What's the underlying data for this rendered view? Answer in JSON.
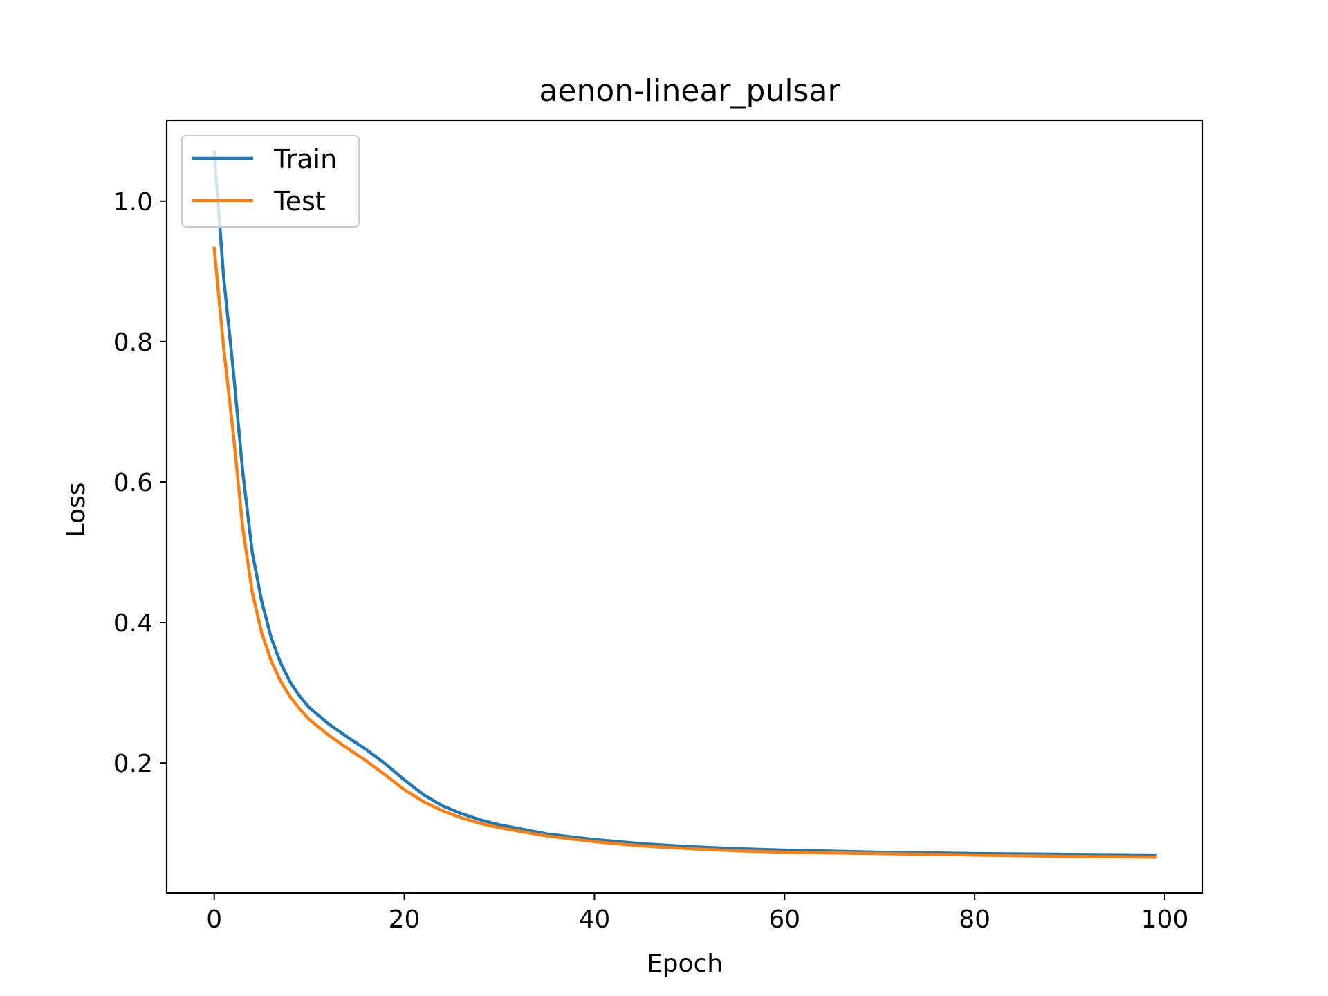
{
  "chart_data": {
    "type": "line",
    "title": "aenon-linear_pulsar",
    "xlabel": "Epoch",
    "ylabel": "Loss",
    "xlim": [
      -5,
      104
    ],
    "ylim": [
      0.015,
      1.115
    ],
    "xticks": [
      0,
      20,
      40,
      60,
      80,
      100
    ],
    "xtick_labels": [
      "0",
      "20",
      "40",
      "60",
      "80",
      "100"
    ],
    "yticks": [
      0.2,
      0.4,
      0.6,
      0.8,
      1.0
    ],
    "ytick_labels": [
      "0.2",
      "0.4",
      "0.6",
      "0.8",
      "1.0"
    ],
    "grid": false,
    "legend": "upper-left",
    "series": [
      {
        "name": "Train",
        "color": "#1f77b4",
        "x": [
          0,
          1,
          2,
          3,
          4,
          5,
          6,
          7,
          8,
          9,
          10,
          12,
          14,
          16,
          18,
          20,
          22,
          24,
          26,
          28,
          30,
          35,
          40,
          45,
          50,
          55,
          60,
          70,
          80,
          90,
          99
        ],
        "values": [
          1.07,
          0.89,
          0.76,
          0.615,
          0.5,
          0.43,
          0.378,
          0.342,
          0.315,
          0.295,
          0.279,
          0.256,
          0.237,
          0.219,
          0.199,
          0.176,
          0.155,
          0.139,
          0.128,
          0.119,
          0.112,
          0.099,
          0.091,
          0.085,
          0.081,
          0.078,
          0.076,
          0.073,
          0.071,
          0.07,
          0.069
        ]
      },
      {
        "name": "Test",
        "color": "#ff7f0e",
        "x": [
          0,
          1,
          2,
          3,
          4,
          5,
          6,
          7,
          8,
          9,
          10,
          12,
          14,
          16,
          18,
          20,
          22,
          24,
          26,
          28,
          30,
          35,
          40,
          45,
          50,
          55,
          60,
          70,
          80,
          90,
          99
        ],
        "values": [
          0.933,
          0.79,
          0.67,
          0.535,
          0.443,
          0.385,
          0.345,
          0.316,
          0.294,
          0.277,
          0.262,
          0.24,
          0.221,
          0.203,
          0.183,
          0.162,
          0.145,
          0.132,
          0.122,
          0.114,
          0.108,
          0.096,
          0.088,
          0.082,
          0.078,
          0.075,
          0.073,
          0.071,
          0.069,
          0.067,
          0.066
        ]
      }
    ]
  }
}
